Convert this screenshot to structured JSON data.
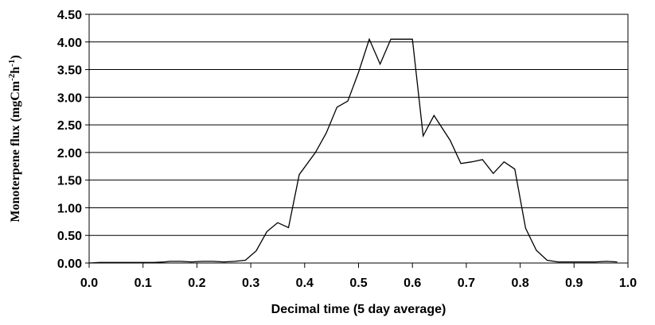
{
  "chart_data": {
    "type": "line",
    "title": "",
    "xlabel": "Decimal time (5 day average)",
    "ylabel": {
      "parts": [
        "Monoterpene flux (mgCm",
        "-2",
        "h",
        "-1",
        ")"
      ]
    },
    "xlim": [
      0.0,
      1.0
    ],
    "ylim": [
      0.0,
      4.5
    ],
    "xticks": [
      "0.0",
      "0.1",
      "0.2",
      "0.3",
      "0.4",
      "0.5",
      "0.6",
      "0.7",
      "0.8",
      "0.9",
      "1.0"
    ],
    "yticks": [
      "0.00",
      "0.50",
      "1.00",
      "1.50",
      "2.00",
      "2.50",
      "3.00",
      "3.50",
      "4.00",
      "4.50"
    ],
    "grid": "horizontal",
    "legend": "none",
    "line_color": "#000000",
    "series": [
      {
        "x": [
          0.0,
          0.02,
          0.04,
          0.06,
          0.08,
          0.1,
          0.12,
          0.14,
          0.15,
          0.17,
          0.19,
          0.21,
          0.23,
          0.25,
          0.27,
          0.29,
          0.31,
          0.33,
          0.35,
          0.37,
          0.39,
          0.42,
          0.44,
          0.46,
          0.48,
          0.5,
          0.52,
          0.54,
          0.56,
          0.58,
          0.6,
          0.62,
          0.64,
          0.67,
          0.69,
          0.71,
          0.73,
          0.75,
          0.77,
          0.79,
          0.81,
          0.83,
          0.85,
          0.87,
          0.89,
          0.92,
          0.94,
          0.96,
          0.98
        ],
        "y": [
          0.0,
          0.01,
          0.01,
          0.01,
          0.01,
          0.01,
          0.01,
          0.02,
          0.03,
          0.03,
          0.02,
          0.03,
          0.03,
          0.02,
          0.03,
          0.05,
          0.22,
          0.57,
          0.73,
          0.64,
          1.6,
          2.0,
          2.35,
          2.82,
          2.93,
          3.45,
          4.05,
          3.6,
          4.05,
          4.05,
          4.05,
          2.3,
          2.67,
          2.22,
          1.8,
          1.83,
          1.87,
          1.62,
          1.83,
          1.7,
          0.63,
          0.23,
          0.05,
          0.02,
          0.02,
          0.02,
          0.02,
          0.03,
          0.02
        ]
      }
    ]
  }
}
